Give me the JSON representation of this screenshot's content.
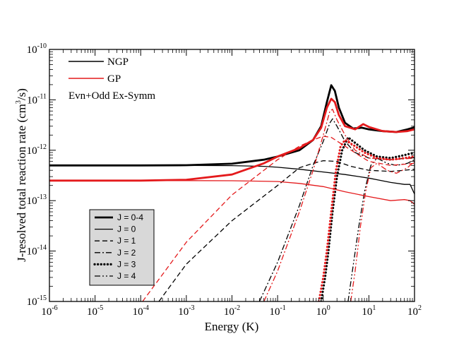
{
  "chart_data": {
    "type": "line",
    "xlabel": "Energy (K)",
    "ylabel": "J-resolved total reaction rate (cm^3/s)",
    "ylabel_main": "J-resolved total reaction rate (cm",
    "ylabel_exp": "3",
    "ylabel_end": "/s)",
    "x_scale": "log",
    "y_scale": "log",
    "xlim": [
      1e-06,
      100
    ],
    "ylim": [
      1e-15,
      1e-10
    ],
    "x_ticks": [
      {
        "base": "10",
        "exp": "-6",
        "value": 1e-06
      },
      {
        "base": "10",
        "exp": "-5",
        "value": 1e-05
      },
      {
        "base": "10",
        "exp": "-4",
        "value": 0.0001
      },
      {
        "base": "10",
        "exp": "-3",
        "value": 0.001
      },
      {
        "base": "10",
        "exp": "-2",
        "value": 0.01
      },
      {
        "base": "10",
        "exp": "-1",
        "value": 0.1
      },
      {
        "base": "10",
        "exp": "0",
        "value": 1
      },
      {
        "base": "10",
        "exp": "1",
        "value": 10
      },
      {
        "base": "10",
        "exp": "2",
        "value": 100
      }
    ],
    "y_ticks": [
      {
        "base": "10",
        "exp": "-15",
        "value": 1e-15
      },
      {
        "base": "10",
        "exp": "-14",
        "value": 1e-14
      },
      {
        "base": "10",
        "exp": "-13",
        "value": 1e-13
      },
      {
        "base": "10",
        "exp": "-12",
        "value": 1e-12
      },
      {
        "base": "10",
        "exp": "-11",
        "value": 1e-11
      },
      {
        "base": "10",
        "exp": "-10",
        "value": 1e-10
      }
    ],
    "annotation": "Evn+Odd Ex-Symm",
    "color_legend": [
      {
        "label": "NGP",
        "color": "#000000"
      },
      {
        "label": "GP",
        "color": "#e41a1c"
      }
    ],
    "style_legend": [
      {
        "label": "J = 0-4",
        "style": "total"
      },
      {
        "label": "J = 0",
        "style": "j0"
      },
      {
        "label": "J = 1",
        "style": "j1"
      },
      {
        "label": "J = 2",
        "style": "j2"
      },
      {
        "label": "J = 3",
        "style": "j3"
      },
      {
        "label": "J = 4",
        "style": "j4"
      }
    ],
    "series": [
      {
        "group": "NGP",
        "j": "J = 0-4",
        "style": "total",
        "color": "#000000",
        "points": [
          [
            1e-06,
            5e-13
          ],
          [
            0.0001,
            5e-13
          ],
          [
            0.001,
            5.05e-13
          ],
          [
            0.01,
            5.4e-13
          ],
          [
            0.05,
            6.5e-13
          ],
          [
            0.1,
            7.5e-13
          ],
          [
            0.3,
            1e-12
          ],
          [
            0.6,
            1.6e-12
          ],
          [
            0.9,
            3e-12
          ],
          [
            1.2,
            9e-12
          ],
          [
            1.5,
            1.95e-11
          ],
          [
            1.8,
            1.5e-11
          ],
          [
            2.2,
            7e-12
          ],
          [
            3.0,
            3.5e-12
          ],
          [
            4.5,
            2.7e-12
          ],
          [
            7.0,
            2.8e-12
          ],
          [
            10,
            2.6e-12
          ],
          [
            20,
            2.4e-12
          ],
          [
            40,
            2.3e-12
          ],
          [
            70,
            2.6e-12
          ],
          [
            100,
            2.85e-12
          ]
        ]
      },
      {
        "group": "NGP",
        "j": "J = 0",
        "style": "j0",
        "color": "#000000",
        "points": [
          [
            1e-06,
            5e-13
          ],
          [
            0.001,
            5e-13
          ],
          [
            0.01,
            4.95e-13
          ],
          [
            0.05,
            4.8e-13
          ],
          [
            0.1,
            4.6e-13
          ],
          [
            0.3,
            4.2e-13
          ],
          [
            1.0,
            3.7e-13
          ],
          [
            3.0,
            3.3e-13
          ],
          [
            10,
            2.8e-13
          ],
          [
            30,
            2.3e-13
          ],
          [
            60,
            2.1e-13
          ],
          [
            80,
            2.1e-13
          ],
          [
            100,
            1.35e-13
          ]
        ]
      },
      {
        "group": "NGP",
        "j": "J = 1",
        "style": "j1",
        "color": "#000000",
        "points": [
          [
            0.00025,
            1e-15
          ],
          [
            0.001,
            5.5e-15
          ],
          [
            0.01,
            4e-14
          ],
          [
            0.1,
            2e-13
          ],
          [
            0.3,
            4.5e-13
          ],
          [
            0.6,
            5.5e-13
          ],
          [
            1.0,
            6.2e-13
          ],
          [
            2.0,
            6e-13
          ],
          [
            4.0,
            4.8e-13
          ],
          [
            10,
            4e-13
          ],
          [
            30,
            3.8e-13
          ],
          [
            60,
            4e-13
          ],
          [
            100,
            4.2e-13
          ]
        ]
      },
      {
        "group": "NGP",
        "j": "J = 2",
        "style": "j2",
        "color": "#000000",
        "points": [
          [
            0.04,
            1e-15
          ],
          [
            0.1,
            6e-15
          ],
          [
            0.3,
            8e-14
          ],
          [
            0.6,
            5e-13
          ],
          [
            1.0,
            1.5e-12
          ],
          [
            1.4,
            3.5e-12
          ],
          [
            1.6,
            4.2e-12
          ],
          [
            2.0,
            3e-12
          ],
          [
            3.0,
            1.5e-12
          ],
          [
            5.0,
            9e-13
          ],
          [
            10,
            7e-13
          ],
          [
            30,
            6.5e-13
          ],
          [
            100,
            7.2e-13
          ]
        ]
      },
      {
        "group": "NGP",
        "j": "J = 3",
        "style": "j3",
        "color": "#000000",
        "points": [
          [
            0.9,
            1e-15
          ],
          [
            1.1,
            3e-15
          ],
          [
            1.3,
            1e-14
          ],
          [
            1.6,
            6e-14
          ],
          [
            2.0,
            3e-13
          ],
          [
            2.6,
            1e-12
          ],
          [
            3.5,
            1.8e-12
          ],
          [
            5.0,
            1.4e-12
          ],
          [
            8.0,
            1e-12
          ],
          [
            15,
            7.5e-13
          ],
          [
            30,
            7e-13
          ],
          [
            60,
            8e-13
          ],
          [
            100,
            9e-13
          ]
        ]
      },
      {
        "group": "NGP",
        "j": "J = 4",
        "style": "j4",
        "color": "#000000",
        "points": [
          [
            3.5,
            1e-15
          ],
          [
            4.5,
            5e-15
          ],
          [
            6.0,
            3e-14
          ],
          [
            8.0,
            1.5e-13
          ],
          [
            11,
            5e-13
          ],
          [
            15,
            7e-13
          ],
          [
            25,
            5.5e-13
          ],
          [
            40,
            5e-13
          ],
          [
            70,
            5.5e-13
          ],
          [
            100,
            6.5e-13
          ]
        ]
      },
      {
        "group": "GP",
        "j": "J = 0-4",
        "style": "total",
        "color": "#e41a1c",
        "points": [
          [
            1e-06,
            2.5e-13
          ],
          [
            0.0001,
            2.5e-13
          ],
          [
            0.001,
            2.6e-13
          ],
          [
            0.01,
            3.3e-13
          ],
          [
            0.05,
            5.5e-13
          ],
          [
            0.1,
            7.5e-13
          ],
          [
            0.3,
            1.1e-12
          ],
          [
            0.6,
            1.6e-12
          ],
          [
            0.9,
            2.8e-12
          ],
          [
            1.2,
            7e-12
          ],
          [
            1.5,
            1.05e-11
          ],
          [
            1.8,
            9e-12
          ],
          [
            2.2,
            5e-12
          ],
          [
            3.0,
            3e-12
          ],
          [
            5.0,
            2.6e-12
          ],
          [
            7.5,
            3.3e-12
          ],
          [
            10,
            2.9e-12
          ],
          [
            20,
            2.4e-12
          ],
          [
            40,
            2.3e-12
          ],
          [
            70,
            2.4e-12
          ],
          [
            100,
            2.6e-12
          ]
        ]
      },
      {
        "group": "GP",
        "j": "J = 0",
        "style": "j0",
        "color": "#e41a1c",
        "points": [
          [
            1e-06,
            2.5e-13
          ],
          [
            0.001,
            2.5e-13
          ],
          [
            0.01,
            2.48e-13
          ],
          [
            0.1,
            2.4e-13
          ],
          [
            0.3,
            2.2e-13
          ],
          [
            1.0,
            1.9e-13
          ],
          [
            3.0,
            1.5e-13
          ],
          [
            10,
            1.2e-13
          ],
          [
            30,
            1e-13
          ],
          [
            60,
            1.05e-13
          ],
          [
            80,
            1e-13
          ],
          [
            100,
            8.5e-14
          ]
        ]
      },
      {
        "group": "GP",
        "j": "J = 1",
        "style": "j1",
        "color": "#e41a1c",
        "points": [
          [
            0.00011,
            1e-15
          ],
          [
            0.001,
            1.5e-14
          ],
          [
            0.01,
            1.3e-13
          ],
          [
            0.1,
            6.5e-13
          ],
          [
            0.3,
            1.2e-12
          ],
          [
            0.6,
            1.6e-12
          ],
          [
            1.0,
            1.9e-12
          ],
          [
            1.5,
            1.8e-12
          ],
          [
            3.0,
            1.2e-12
          ],
          [
            6.0,
            8e-13
          ],
          [
            10,
            6e-13
          ],
          [
            30,
            5e-13
          ],
          [
            100,
            5.5e-13
          ]
        ]
      },
      {
        "group": "GP",
        "j": "J = 2",
        "style": "j2",
        "color": "#e41a1c",
        "points": [
          [
            0.05,
            1e-15
          ],
          [
            0.1,
            4e-15
          ],
          [
            0.3,
            6e-14
          ],
          [
            0.6,
            4e-13
          ],
          [
            1.0,
            2e-12
          ],
          [
            1.4,
            6e-12
          ],
          [
            1.6,
            6.5e-12
          ],
          [
            2.0,
            4e-12
          ],
          [
            3.0,
            2e-12
          ],
          [
            5.0,
            1e-12
          ],
          [
            10,
            7e-13
          ],
          [
            30,
            6.5e-13
          ],
          [
            100,
            7e-13
          ]
        ]
      },
      {
        "group": "GP",
        "j": "J = 3",
        "style": "j3",
        "color": "#e41a1c",
        "points": [
          [
            0.8,
            1e-15
          ],
          [
            1.0,
            3e-15
          ],
          [
            1.2,
            1e-14
          ],
          [
            1.5,
            6e-14
          ],
          [
            1.9,
            4e-13
          ],
          [
            2.4,
            1.2e-12
          ],
          [
            3.0,
            1.6e-12
          ],
          [
            5.0,
            1.2e-12
          ],
          [
            8.0,
            9e-13
          ],
          [
            15,
            7e-13
          ],
          [
            30,
            6.5e-13
          ],
          [
            60,
            7e-13
          ],
          [
            100,
            7.5e-13
          ]
        ]
      },
      {
        "group": "GP",
        "j": "J = 4",
        "style": "j4",
        "color": "#e41a1c",
        "points": [
          [
            4.0,
            1e-15
          ],
          [
            5.0,
            4e-15
          ],
          [
            6.5,
            3e-14
          ],
          [
            8.5,
            1.5e-13
          ],
          [
            11,
            4.5e-13
          ],
          [
            15,
            5.5e-13
          ],
          [
            25,
            4e-13
          ],
          [
            40,
            3.5e-13
          ],
          [
            70,
            4.5e-13
          ],
          [
            100,
            6e-13
          ]
        ]
      }
    ]
  }
}
